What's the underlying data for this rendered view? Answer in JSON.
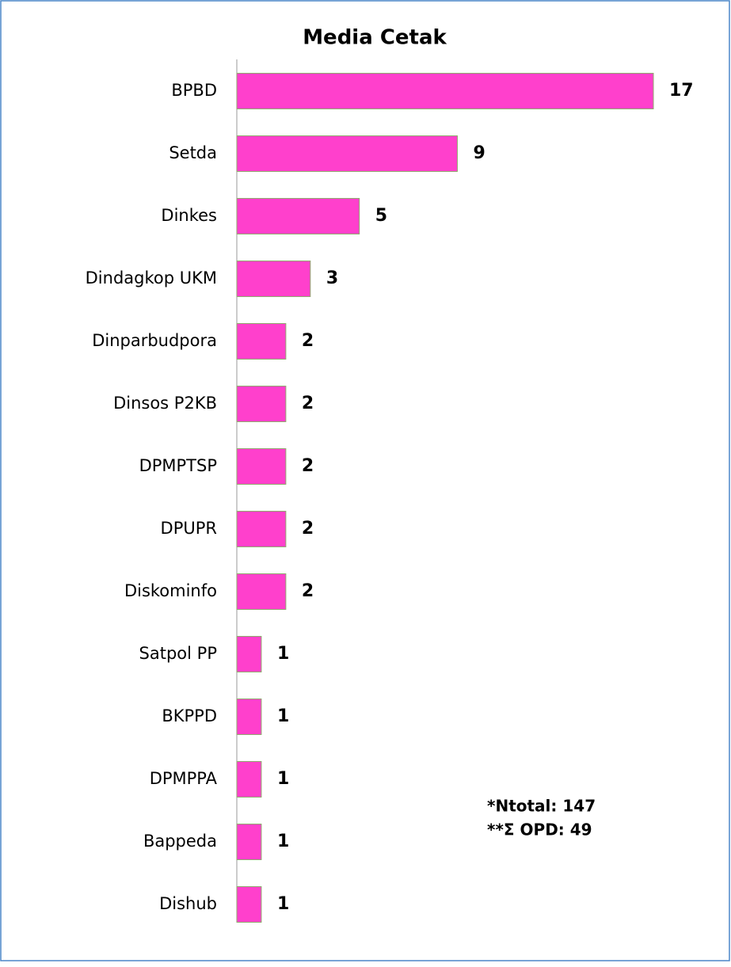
{
  "chart_data": {
    "type": "bar",
    "orientation": "horizontal",
    "title": "Media Cetak",
    "categories": [
      "BPBD",
      "Setda",
      "Dinkes",
      "Dindagkop UKM",
      "Dinparbudpora",
      "Dinsos P2KB",
      "DPMPTSP",
      "DPUPR",
      "Diskominfo",
      "Satpol PP",
      "BKPPD",
      "DPMPPA",
      "Bappeda",
      "Dishub"
    ],
    "values": [
      17,
      9,
      5,
      3,
      2,
      2,
      2,
      2,
      2,
      1,
      1,
      1,
      1,
      1
    ],
    "color": "#ff40cc",
    "annotations": [
      "*Ntotal: 147",
      "**Σ OPD: 49"
    ]
  }
}
